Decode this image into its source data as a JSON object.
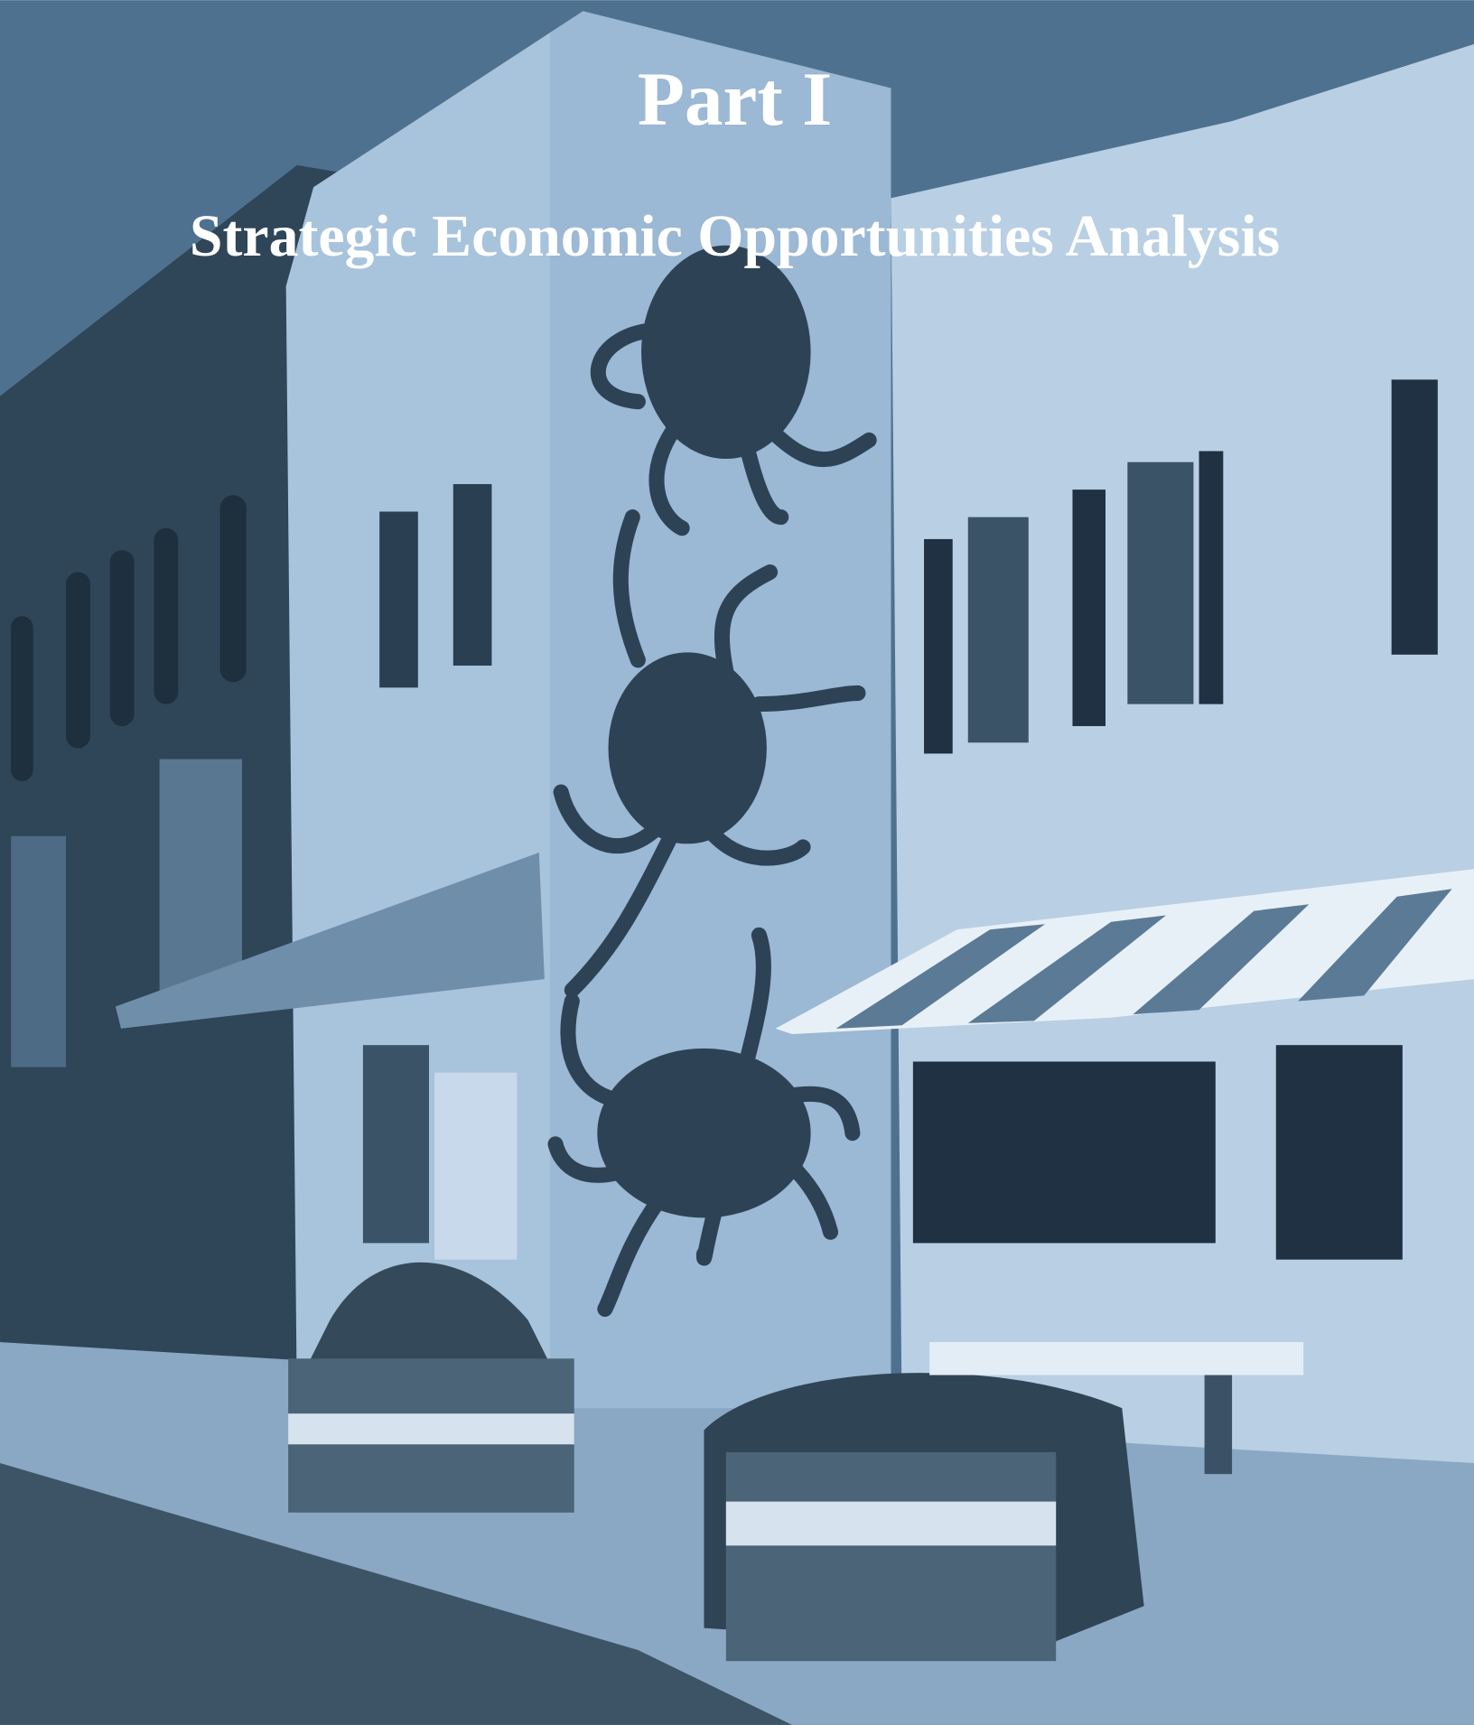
{
  "header": {
    "title": "Part I",
    "subtitle": "Strategic Economic Opportunities Analysis"
  }
}
